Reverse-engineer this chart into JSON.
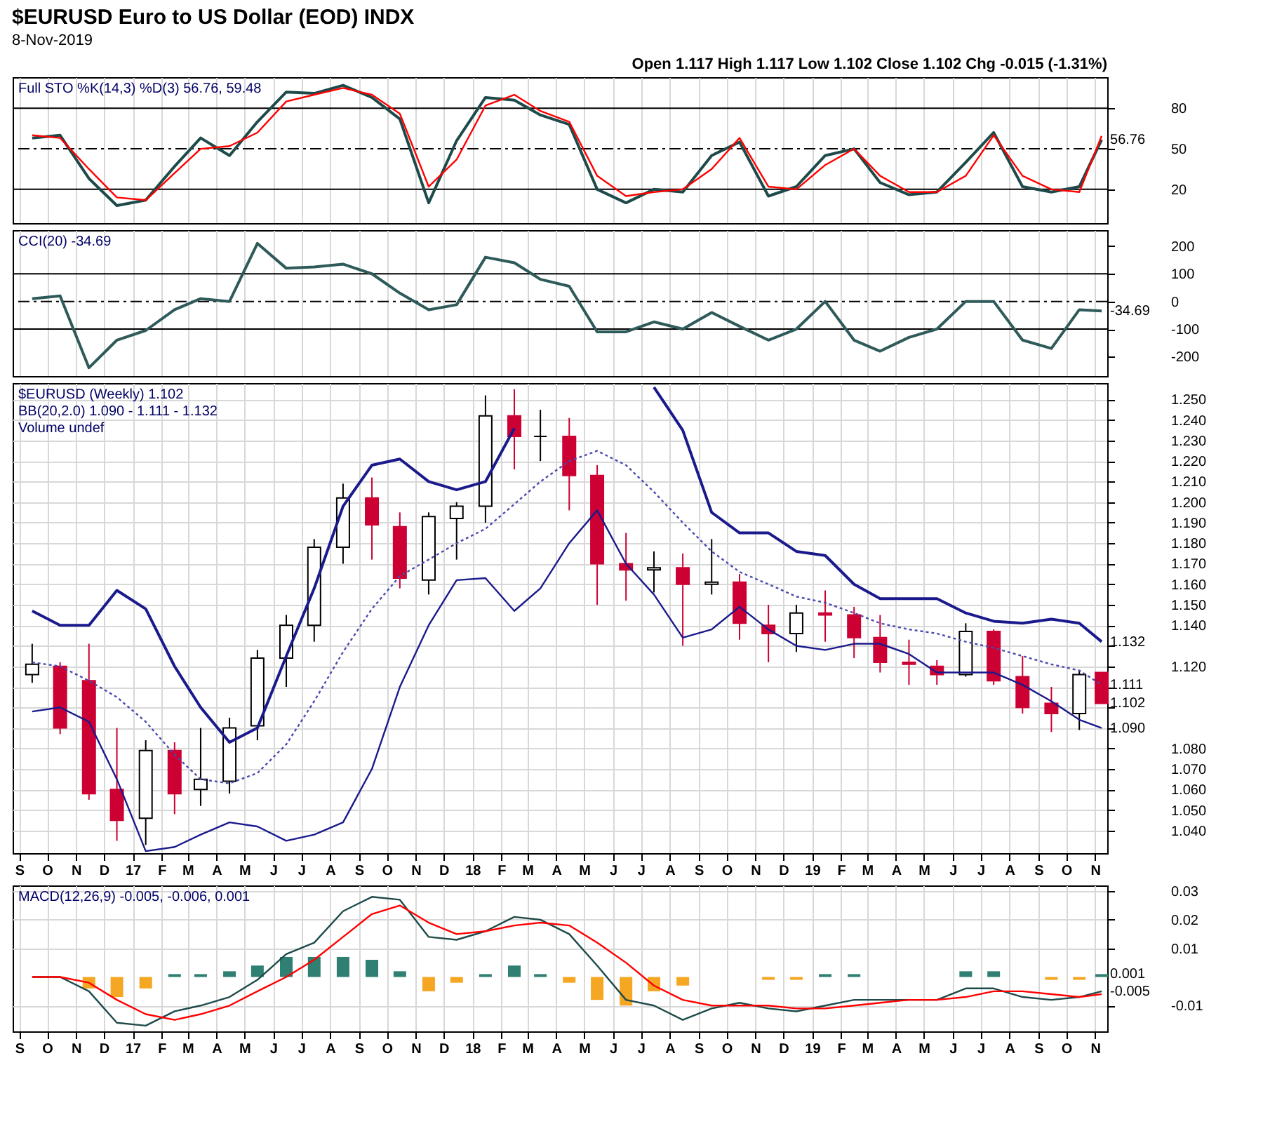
{
  "chart_data": [
    {
      "type": "line",
      "title": "$EURUSD Euro to US Dollar (EOD) INDX",
      "subtitle": "8-Nov-2019",
      "annotations": [
        "Open 1.117 High 1.117 Low 1.102 Close 1.102 Chg -0.015 (-1.31%)",
        "Full STO %K(14,3) %D(3) 56.76, 59.48",
        {
          "text": "56.76",
          "x": "2019-11-08",
          "y": 56.76
        }
      ],
      "x": [
        "2016-09-15",
        "2016-10-15",
        "2016-11-15",
        "2016-12-15",
        "2017-01-15",
        "2017-02-15",
        "2017-03-15",
        "2017-04-15",
        "2017-05-15",
        "2017-06-15",
        "2017-07-15",
        "2017-08-15",
        "2017-09-15",
        "2017-10-15",
        "2017-11-15",
        "2017-12-15",
        "2018-01-15",
        "2018-02-15",
        "2018-03-15",
        "2018-04-15",
        "2018-05-15",
        "2018-06-15",
        "2018-07-15",
        "2018-08-15",
        "2018-09-15",
        "2018-10-15",
        "2018-11-15",
        "2018-12-15",
        "2019-01-15",
        "2019-02-15",
        "2019-03-15",
        "2019-04-15",
        "2019-05-15",
        "2019-06-15",
        "2019-07-15",
        "2019-08-15",
        "2019-09-15",
        "2019-10-15",
        "2019-11-08"
      ],
      "xlim": [
        "2016-08-25",
        "2019-11-14"
      ],
      "xticks": [
        {
          "value": "2016-09",
          "label": null
        },
        {
          "value": "2016-10",
          "label": null
        },
        {
          "value": "2016-11",
          "label": null
        },
        {
          "value": "2016-12",
          "label": null
        },
        {
          "value": "2017-01",
          "label": null
        },
        {
          "value": "2017-02",
          "label": null
        },
        {
          "value": "2017-03",
          "label": null
        },
        {
          "value": "2017-04",
          "label": null
        },
        {
          "value": "2017-05",
          "label": null
        },
        {
          "value": "2017-06",
          "label": null
        },
        {
          "value": "2017-07",
          "label": null
        },
        {
          "value": "2017-08",
          "label": null
        },
        {
          "value": "2017-09",
          "label": null
        },
        {
          "value": "2017-10",
          "label": null
        },
        {
          "value": "2017-11",
          "label": null
        },
        {
          "value": "2017-12",
          "label": null
        },
        {
          "value": "2018-01",
          "label": null
        },
        {
          "value": "2018-02",
          "label": null
        },
        {
          "value": "2018-03",
          "label": null
        },
        {
          "value": "2018-04",
          "label": null
        },
        {
          "value": "2018-05",
          "label": null
        },
        {
          "value": "2018-06",
          "label": null
        },
        {
          "value": "2018-07",
          "label": null
        },
        {
          "value": "2018-08",
          "label": null
        },
        {
          "value": "2018-09",
          "label": null
        },
        {
          "value": "2018-10",
          "label": null
        },
        {
          "value": "2018-11",
          "label": null
        },
        {
          "value": "2018-12",
          "label": null
        },
        {
          "value": "2019-01",
          "label": null
        },
        {
          "value": "2019-02",
          "label": null
        },
        {
          "value": "2019-03",
          "label": null
        },
        {
          "value": "2019-04",
          "label": null
        },
        {
          "value": "2019-05",
          "label": null
        },
        {
          "value": "2019-06",
          "label": null
        },
        {
          "value": "2019-07",
          "label": null
        },
        {
          "value": "2019-08",
          "label": null
        },
        {
          "value": "2019-09",
          "label": null
        },
        {
          "value": "2019-10",
          "label": null
        },
        {
          "value": "2019-11",
          "label": null
        }
      ],
      "ylim": [
        -5,
        103
      ],
      "yticks": [
        20,
        50,
        80
      ],
      "grid": "x",
      "tick_labels": "y",
      "ref_lines": [
        {
          "axis": "y",
          "value": 80,
          "color": "#000000",
          "line_style": "solid"
        },
        {
          "axis": "y",
          "value": 50,
          "color": "#000000",
          "line_style": "dashed"
        },
        {
          "axis": "y",
          "value": 20,
          "color": "#000000",
          "line_style": "solid"
        }
      ],
      "series": [
        {
          "color": "#1e4a4a",
          "values": [
            58,
            60,
            28,
            8,
            12,
            37,
            58,
            45,
            70,
            92,
            91,
            97,
            88,
            72,
            10,
            56,
            88,
            86,
            75,
            68,
            20,
            10,
            20,
            18,
            45,
            55,
            15,
            22,
            45,
            50,
            25,
            16,
            18,
            40,
            62,
            22,
            18,
            22,
            56.76
          ]
        },
        {
          "color": "#ff0000",
          "values": [
            60,
            58,
            35,
            14,
            12,
            32,
            50,
            52,
            62,
            85,
            90,
            95,
            90,
            76,
            22,
            42,
            82,
            90,
            78,
            70,
            30,
            15,
            18,
            20,
            35,
            58,
            22,
            20,
            38,
            50,
            30,
            18,
            18,
            30,
            60,
            30,
            20,
            18,
            59.48
          ]
        }
      ]
    },
    {
      "type": "line",
      "annotations": [
        "CCI(20) -34.69",
        {
          "text": "-34.69",
          "x": "2019-11-08",
          "y": -34.69
        }
      ],
      "x": [
        "2016-09-15",
        "2016-10-15",
        "2016-11-15",
        "2016-12-15",
        "2017-01-15",
        "2017-02-15",
        "2017-03-15",
        "2017-04-15",
        "2017-05-15",
        "2017-06-15",
        "2017-07-15",
        "2017-08-15",
        "2017-09-15",
        "2017-10-15",
        "2017-11-15",
        "2017-12-15",
        "2018-01-15",
        "2018-02-15",
        "2018-03-15",
        "2018-04-15",
        "2018-05-15",
        "2018-06-15",
        "2018-07-15",
        "2018-08-15",
        "2018-09-15",
        "2018-10-15",
        "2018-11-15",
        "2018-12-15",
        "2019-01-15",
        "2019-02-15",
        "2019-03-15",
        "2019-04-15",
        "2019-05-15",
        "2019-06-15",
        "2019-07-15",
        "2019-08-15",
        "2019-09-15",
        "2019-10-15",
        "2019-11-08"
      ],
      "xlim": [
        "2016-08-25",
        "2019-11-14"
      ],
      "xticks": [
        {
          "value": "2016-09",
          "label": null
        },
        {
          "value": "2016-10",
          "label": null
        },
        {
          "value": "2016-11",
          "label": null
        },
        {
          "value": "2016-12",
          "label": null
        },
        {
          "value": "2017-01",
          "label": null
        },
        {
          "value": "2017-02",
          "label": null
        },
        {
          "value": "2017-03",
          "label": null
        },
        {
          "value": "2017-04",
          "label": null
        },
        {
          "value": "2017-05",
          "label": null
        },
        {
          "value": "2017-06",
          "label": null
        },
        {
          "value": "2017-07",
          "label": null
        },
        {
          "value": "2017-08",
          "label": null
        },
        {
          "value": "2017-09",
          "label": null
        },
        {
          "value": "2017-10",
          "label": null
        },
        {
          "value": "2017-11",
          "label": null
        },
        {
          "value": "2017-12",
          "label": null
        },
        {
          "value": "2018-01",
          "label": null
        },
        {
          "value": "2018-02",
          "label": null
        },
        {
          "value": "2018-03",
          "label": null
        },
        {
          "value": "2018-04",
          "label": null
        },
        {
          "value": "2018-05",
          "label": null
        },
        {
          "value": "2018-06",
          "label": null
        },
        {
          "value": "2018-07",
          "label": null
        },
        {
          "value": "2018-08",
          "label": null
        },
        {
          "value": "2018-09",
          "label": null
        },
        {
          "value": "2018-10",
          "label": null
        },
        {
          "value": "2018-11",
          "label": null
        },
        {
          "value": "2018-12",
          "label": null
        },
        {
          "value": "2019-01",
          "label": null
        },
        {
          "value": "2019-02",
          "label": null
        },
        {
          "value": "2019-03",
          "label": null
        },
        {
          "value": "2019-04",
          "label": null
        },
        {
          "value": "2019-05",
          "label": null
        },
        {
          "value": "2019-06",
          "label": null
        },
        {
          "value": "2019-07",
          "label": null
        },
        {
          "value": "2019-08",
          "label": null
        },
        {
          "value": "2019-09",
          "label": null
        },
        {
          "value": "2019-10",
          "label": null
        },
        {
          "value": "2019-11",
          "label": null
        }
      ],
      "ylim": [
        -270,
        258
      ],
      "yticks": [
        -200,
        -100,
        0,
        100,
        200
      ],
      "grid": "x",
      "tick_labels": "y",
      "ref_lines": [
        {
          "axis": "y",
          "value": 100,
          "color": "#000000",
          "line_style": "solid"
        },
        {
          "axis": "y",
          "value": 0,
          "color": "#000000",
          "line_style": "dashed"
        },
        {
          "axis": "y",
          "value": -100,
          "color": "#000000",
          "line_style": "solid"
        }
      ],
      "series": [
        {
          "color": "#2e5a5a",
          "values": [
            10,
            20,
            -240,
            -140,
            -105,
            -30,
            10,
            0,
            210,
            120,
            125,
            135,
            100,
            30,
            -30,
            -12,
            160,
            140,
            80,
            55,
            -110,
            -110,
            -74,
            -100,
            -40,
            -90,
            -140,
            -100,
            0,
            -140,
            -180,
            -130,
            -100,
            0,
            0,
            -140,
            -170,
            -30,
            -34.69
          ]
        }
      ]
    },
    {
      "type": "candlestick",
      "annotations": [
        "$EURUSD (Weekly) 1.102",
        "BB(20,2.0) 1.090 - 1.111 - 1.132",
        "Volume undef",
        {
          "text": "1.132",
          "x": "2019-11-08",
          "y": 1.132
        },
        {
          "text": "1.111",
          "x": "2019-11-08",
          "y": 1.111
        },
        {
          "text": "1.102",
          "x": "2019-11-08",
          "y": 1.102
        },
        {
          "text": "1.090",
          "x": "2019-11-08",
          "y": 1.09
        }
      ],
      "x": [
        "2016-09-15",
        "2016-10-15",
        "2016-11-15",
        "2016-12-15",
        "2017-01-15",
        "2017-02-15",
        "2017-03-15",
        "2017-04-15",
        "2017-05-15",
        "2017-06-15",
        "2017-07-15",
        "2017-08-15",
        "2017-09-15",
        "2017-10-15",
        "2017-11-15",
        "2017-12-15",
        "2018-01-15",
        "2018-02-15",
        "2018-03-15",
        "2018-04-15",
        "2018-05-15",
        "2018-06-15",
        "2018-07-15",
        "2018-08-15",
        "2018-09-15",
        "2018-10-15",
        "2018-11-15",
        "2018-12-15",
        "2019-01-15",
        "2019-02-15",
        "2019-03-15",
        "2019-04-15",
        "2019-05-15",
        "2019-06-15",
        "2019-07-15",
        "2019-08-15",
        "2019-09-15",
        "2019-10-15",
        "2019-11-08"
      ],
      "xlim": [
        "2016-08-25",
        "2019-11-14"
      ],
      "xticks": [
        {
          "value": "2016-09",
          "label": "S"
        },
        {
          "value": "2016-10",
          "label": "O"
        },
        {
          "value": "2016-11",
          "label": "N"
        },
        {
          "value": "2016-12",
          "label": "D"
        },
        {
          "value": "2017-01",
          "label": "17"
        },
        {
          "value": "2017-02",
          "label": "F"
        },
        {
          "value": "2017-03",
          "label": "M"
        },
        {
          "value": "2017-04",
          "label": "A"
        },
        {
          "value": "2017-05",
          "label": "M"
        },
        {
          "value": "2017-06",
          "label": "J"
        },
        {
          "value": "2017-07",
          "label": "J"
        },
        {
          "value": "2017-08",
          "label": "A"
        },
        {
          "value": "2017-09",
          "label": "S"
        },
        {
          "value": "2017-10",
          "label": "O"
        },
        {
          "value": "2017-11",
          "label": "N"
        },
        {
          "value": "2017-12",
          "label": "D"
        },
        {
          "value": "2018-01",
          "label": "18"
        },
        {
          "value": "2018-02",
          "label": "F"
        },
        {
          "value": "2018-03",
          "label": "M"
        },
        {
          "value": "2018-04",
          "label": "A"
        },
        {
          "value": "2018-05",
          "label": "M"
        },
        {
          "value": "2018-06",
          "label": "J"
        },
        {
          "value": "2018-07",
          "label": "J"
        },
        {
          "value": "2018-08",
          "label": "A"
        },
        {
          "value": "2018-09",
          "label": "S"
        },
        {
          "value": "2018-10",
          "label": "O"
        },
        {
          "value": "2018-11",
          "label": "N"
        },
        {
          "value": "2018-12",
          "label": "D"
        },
        {
          "value": "2019-01",
          "label": "19"
        },
        {
          "value": "2019-02",
          "label": "F"
        },
        {
          "value": "2019-03",
          "label": "M"
        },
        {
          "value": "2019-04",
          "label": "A"
        },
        {
          "value": "2019-05",
          "label": "M"
        },
        {
          "value": "2019-06",
          "label": "J"
        },
        {
          "value": "2019-07",
          "label": "J"
        },
        {
          "value": "2019-08",
          "label": "A"
        },
        {
          "value": "2019-09",
          "label": "S"
        },
        {
          "value": "2019-10",
          "label": "O"
        },
        {
          "value": "2019-11",
          "label": "N"
        }
      ],
      "ylim": [
        1.029,
        1.258
      ],
      "yticks": [
        {
          "value": 1.04,
          "label": "1.040"
        },
        {
          "value": 1.05,
          "label": "1.050"
        },
        {
          "value": 1.06,
          "label": "1.060"
        },
        {
          "value": 1.07,
          "label": "1.070"
        },
        {
          "value": 1.08,
          "label": "1.080"
        },
        {
          "value": 1.09,
          "label": null
        },
        {
          "value": 1.1,
          "label": null
        },
        {
          "value": 1.11,
          "label": null
        },
        {
          "value": 1.12,
          "label": "1.120"
        },
        {
          "value": 1.13,
          "label": null
        },
        {
          "value": 1.14,
          "label": "1.140"
        },
        {
          "value": 1.15,
          "label": "1.150"
        },
        {
          "value": 1.16,
          "label": "1.160"
        },
        {
          "value": 1.17,
          "label": "1.170"
        },
        {
          "value": 1.18,
          "label": "1.180"
        },
        {
          "value": 1.19,
          "label": "1.190"
        },
        {
          "value": 1.2,
          "label": "1.200"
        },
        {
          "value": 1.21,
          "label": "1.210"
        },
        {
          "value": 1.22,
          "label": "1.220"
        },
        {
          "value": 1.23,
          "label": "1.230"
        },
        {
          "value": 1.24,
          "label": "1.240"
        },
        {
          "value": 1.25,
          "label": "1.250"
        }
      ],
      "grid": true,
      "ohlc": [
        [
          1.116,
          1.131,
          1.112,
          1.121
        ],
        [
          1.12,
          1.122,
          1.087,
          1.09
        ],
        [
          1.113,
          1.131,
          1.055,
          1.058
        ],
        [
          1.06,
          1.09,
          1.035,
          1.045
        ],
        [
          1.046,
          1.084,
          1.033,
          1.079
        ],
        [
          1.079,
          1.083,
          1.048,
          1.058
        ],
        [
          1.06,
          1.09,
          1.052,
          1.065
        ],
        [
          1.064,
          1.095,
          1.058,
          1.09
        ],
        [
          1.091,
          1.128,
          1.084,
          1.124
        ],
        [
          1.124,
          1.145,
          1.11,
          1.14
        ],
        [
          1.14,
          1.182,
          1.132,
          1.178
        ],
        [
          1.178,
          1.209,
          1.17,
          1.202
        ],
        [
          1.202,
          1.212,
          1.172,
          1.189
        ],
        [
          1.188,
          1.195,
          1.158,
          1.163
        ],
        [
          1.162,
          1.195,
          1.155,
          1.193
        ],
        [
          1.192,
          1.2,
          1.172,
          1.198
        ],
        [
          1.198,
          1.252,
          1.19,
          1.242
        ],
        [
          1.242,
          1.255,
          1.216,
          1.232
        ],
        [
          1.232,
          1.245,
          1.22,
          1.232
        ],
        [
          1.232,
          1.241,
          1.196,
          1.213
        ],
        [
          1.213,
          1.218,
          1.15,
          1.17
        ],
        [
          1.17,
          1.185,
          1.152,
          1.167
        ],
        [
          1.167,
          1.176,
          1.156,
          1.168
        ],
        [
          1.168,
          1.175,
          1.13,
          1.16
        ],
        [
          1.16,
          1.182,
          1.155,
          1.161
        ],
        [
          1.161,
          1.165,
          1.133,
          1.141
        ],
        [
          1.14,
          1.15,
          1.122,
          1.136
        ],
        [
          1.136,
          1.15,
          1.127,
          1.146
        ],
        [
          1.146,
          1.157,
          1.132,
          1.145
        ],
        [
          1.145,
          1.149,
          1.124,
          1.134
        ],
        [
          1.134,
          1.145,
          1.117,
          1.122
        ],
        [
          1.122,
          1.133,
          1.111,
          1.121
        ],
        [
          1.12,
          1.123,
          1.111,
          1.116
        ],
        [
          1.116,
          1.141,
          1.115,
          1.137
        ],
        [
          1.137,
          1.138,
          1.111,
          1.113
        ],
        [
          1.115,
          1.125,
          1.097,
          1.1
        ],
        [
          1.102,
          1.11,
          1.088,
          1.097
        ],
        [
          1.097,
          1.118,
          1.089,
          1.116
        ],
        [
          1.117,
          1.117,
          1.102,
          1.102
        ]
      ],
      "series": [
        {
          "type": "line",
          "color": "#1a1a8c",
          "values": [
            1.147,
            1.14,
            1.14,
            1.157,
            1.148,
            1.12,
            1.1,
            1.083,
            1.09,
            1.125,
            1.158,
            1.198,
            1.218,
            1.221,
            1.21,
            1.206,
            1.21,
            1.236,
            null,
            null,
            null,
            null,
            1.256,
            1.235,
            1.195,
            1.185,
            1.185,
            1.176,
            1.174,
            1.16,
            1.153,
            1.153,
            1.153,
            1.146,
            1.142,
            1.141,
            1.143,
            1.141,
            1.132
          ]
        },
        {
          "type": "line",
          "color": "#4a4ab0",
          "line_style": "dotted",
          "values": [
            1.122,
            1.12,
            1.113,
            1.105,
            1.093,
            1.077,
            1.065,
            1.063,
            1.068,
            1.082,
            1.103,
            1.127,
            1.148,
            1.164,
            1.172,
            1.18,
            1.187,
            1.199,
            1.21,
            1.22,
            1.225,
            1.218,
            1.205,
            1.19,
            1.176,
            1.166,
            1.16,
            1.154,
            1.151,
            1.146,
            1.141,
            1.138,
            1.136,
            1.132,
            1.129,
            1.125,
            1.121,
            1.118,
            1.111
          ]
        },
        {
          "type": "line",
          "color": "#1a1a8c",
          "values": [
            1.098,
            1.1,
            1.093,
            1.065,
            1.03,
            1.032,
            1.038,
            1.044,
            1.042,
            1.035,
            1.038,
            1.044,
            1.07,
            1.11,
            1.14,
            1.162,
            1.163,
            1.147,
            1.158,
            1.18,
            1.196,
            1.17,
            1.155,
            1.134,
            1.138,
            1.149,
            1.138,
            1.13,
            1.128,
            1.131,
            1.131,
            1.126,
            1.117,
            1.117,
            1.117,
            1.111,
            1.103,
            1.094,
            1.09
          ]
        }
      ]
    },
    {
      "type": "line",
      "annotations": [
        "MACD(12,26,9) -0.005, -0.006, 0.001",
        {
          "text": "0.001",
          "x": "2019-11-08",
          "y": 0.001
        },
        {
          "text": "-0.005",
          "x": "2019-11-08",
          "y": -0.005
        }
      ],
      "x": [
        "2016-09-15",
        "2016-10-15",
        "2016-11-15",
        "2016-12-15",
        "2017-01-15",
        "2017-02-15",
        "2017-03-15",
        "2017-04-15",
        "2017-05-15",
        "2017-06-15",
        "2017-07-15",
        "2017-08-15",
        "2017-09-15",
        "2017-10-15",
        "2017-11-15",
        "2017-12-15",
        "2018-01-15",
        "2018-02-15",
        "2018-03-15",
        "2018-04-15",
        "2018-05-15",
        "2018-06-15",
        "2018-07-15",
        "2018-08-15",
        "2018-09-15",
        "2018-10-15",
        "2018-11-15",
        "2018-12-15",
        "2019-01-15",
        "2019-02-15",
        "2019-03-15",
        "2019-04-15",
        "2019-05-15",
        "2019-06-15",
        "2019-07-15",
        "2019-08-15",
        "2019-09-15",
        "2019-10-15",
        "2019-11-08"
      ],
      "xlim": [
        "2016-08-25",
        "2019-11-14"
      ],
      "xticks": [
        {
          "value": "2016-09",
          "label": "S"
        },
        {
          "value": "2016-10",
          "label": "O"
        },
        {
          "value": "2016-11",
          "label": "N"
        },
        {
          "value": "2016-12",
          "label": "D"
        },
        {
          "value": "2017-01",
          "label": "17"
        },
        {
          "value": "2017-02",
          "label": "F"
        },
        {
          "value": "2017-03",
          "label": "M"
        },
        {
          "value": "2017-04",
          "label": "A"
        },
        {
          "value": "2017-05",
          "label": "M"
        },
        {
          "value": "2017-06",
          "label": "J"
        },
        {
          "value": "2017-07",
          "label": "J"
        },
        {
          "value": "2017-08",
          "label": "A"
        },
        {
          "value": "2017-09",
          "label": "S"
        },
        {
          "value": "2017-10",
          "label": "O"
        },
        {
          "value": "2017-11",
          "label": "N"
        },
        {
          "value": "2017-12",
          "label": "D"
        },
        {
          "value": "2018-01",
          "label": "18"
        },
        {
          "value": "2018-02",
          "label": "F"
        },
        {
          "value": "2018-03",
          "label": "M"
        },
        {
          "value": "2018-04",
          "label": "A"
        },
        {
          "value": "2018-05",
          "label": "M"
        },
        {
          "value": "2018-06",
          "label": "J"
        },
        {
          "value": "2018-07",
          "label": "J"
        },
        {
          "value": "2018-08",
          "label": "A"
        },
        {
          "value": "2018-09",
          "label": "S"
        },
        {
          "value": "2018-10",
          "label": "O"
        },
        {
          "value": "2018-11",
          "label": "N"
        },
        {
          "value": "2018-12",
          "label": "D"
        },
        {
          "value": "2019-01",
          "label": "19"
        },
        {
          "value": "2019-02",
          "label": "F"
        },
        {
          "value": "2019-03",
          "label": "M"
        },
        {
          "value": "2019-04",
          "label": "A"
        },
        {
          "value": "2019-05",
          "label": "M"
        },
        {
          "value": "2019-06",
          "label": "J"
        },
        {
          "value": "2019-07",
          "label": "J"
        },
        {
          "value": "2019-08",
          "label": "A"
        },
        {
          "value": "2019-09",
          "label": "S"
        },
        {
          "value": "2019-10",
          "label": "O"
        },
        {
          "value": "2019-11",
          "label": "N"
        }
      ],
      "ylim": [
        -0.019,
        0.032
      ],
      "yticks": [
        -0.01,
        0.01,
        0.02,
        0.03
      ],
      "grid": true,
      "series": [
        {
          "type": "bar",
          "colors": [
            "#f5a623",
            "#f5a623",
            "#f5a623",
            "#f5a623",
            "#f5a623",
            "#2f7f72",
            "#2f7f72",
            "#2f7f72",
            "#2f7f72",
            "#2f7f72",
            "#2f7f72",
            "#2f7f72",
            "#2f7f72",
            "#2f7f72",
            "#f5a623",
            "#f5a623",
            "#2f7f72",
            "#2f7f72",
            "#2f7f72",
            "#f5a623",
            "#f5a623",
            "#f5a623",
            "#f5a623",
            "#f5a623",
            "#f5a623",
            "#f5a623",
            "#f5a623",
            "#f5a623",
            "#2f7f72",
            "#2f7f72",
            "#f5a623",
            "#f5a623",
            "#f5a623",
            "#2f7f72",
            "#2f7f72",
            "#f5a623",
            "#f5a623",
            "#f5a623",
            "#2f7f72"
          ],
          "values": [
            0,
            0,
            -0.004,
            -0.007,
            -0.004,
            0.001,
            0.001,
            0.002,
            0.004,
            0.007,
            0.007,
            0.007,
            0.006,
            0.002,
            -0.005,
            -0.002,
            0.001,
            0.004,
            0.001,
            -0.002,
            -0.008,
            -0.01,
            -0.005,
            -0.003,
            0,
            0,
            -0.001,
            -0.001,
            0.001,
            0.001,
            0,
            0,
            0,
            0.002,
            0.002,
            0,
            -0.001,
            -0.001,
            0.001
          ]
        },
        {
          "type": "line",
          "color": "#1e4a4a",
          "values": [
            0,
            0,
            -0.005,
            -0.016,
            -0.017,
            -0.012,
            -0.01,
            -0.007,
            -0.001,
            0.008,
            0.012,
            0.023,
            0.028,
            0.027,
            0.014,
            0.013,
            0.016,
            0.021,
            0.02,
            0.015,
            0.004,
            -0.008,
            -0.01,
            -0.015,
            -0.011,
            -0.009,
            -0.011,
            -0.012,
            -0.01,
            -0.008,
            -0.008,
            -0.008,
            -0.008,
            -0.004,
            -0.004,
            -0.007,
            -0.008,
            -0.007,
            -0.005
          ]
        },
        {
          "type": "line",
          "color": "#ff0000",
          "values": [
            0,
            0,
            -0.002,
            -0.008,
            -0.013,
            -0.015,
            -0.013,
            -0.01,
            -0.005,
            0,
            0.006,
            0.014,
            0.022,
            0.025,
            0.019,
            0.015,
            0.016,
            0.018,
            0.019,
            0.018,
            0.012,
            0.005,
            -0.003,
            -0.008,
            -0.01,
            -0.01,
            -0.01,
            -0.011,
            -0.011,
            -0.01,
            -0.009,
            -0.008,
            -0.008,
            -0.007,
            -0.005,
            -0.005,
            -0.006,
            -0.007,
            -0.006
          ]
        }
      ]
    }
  ]
}
